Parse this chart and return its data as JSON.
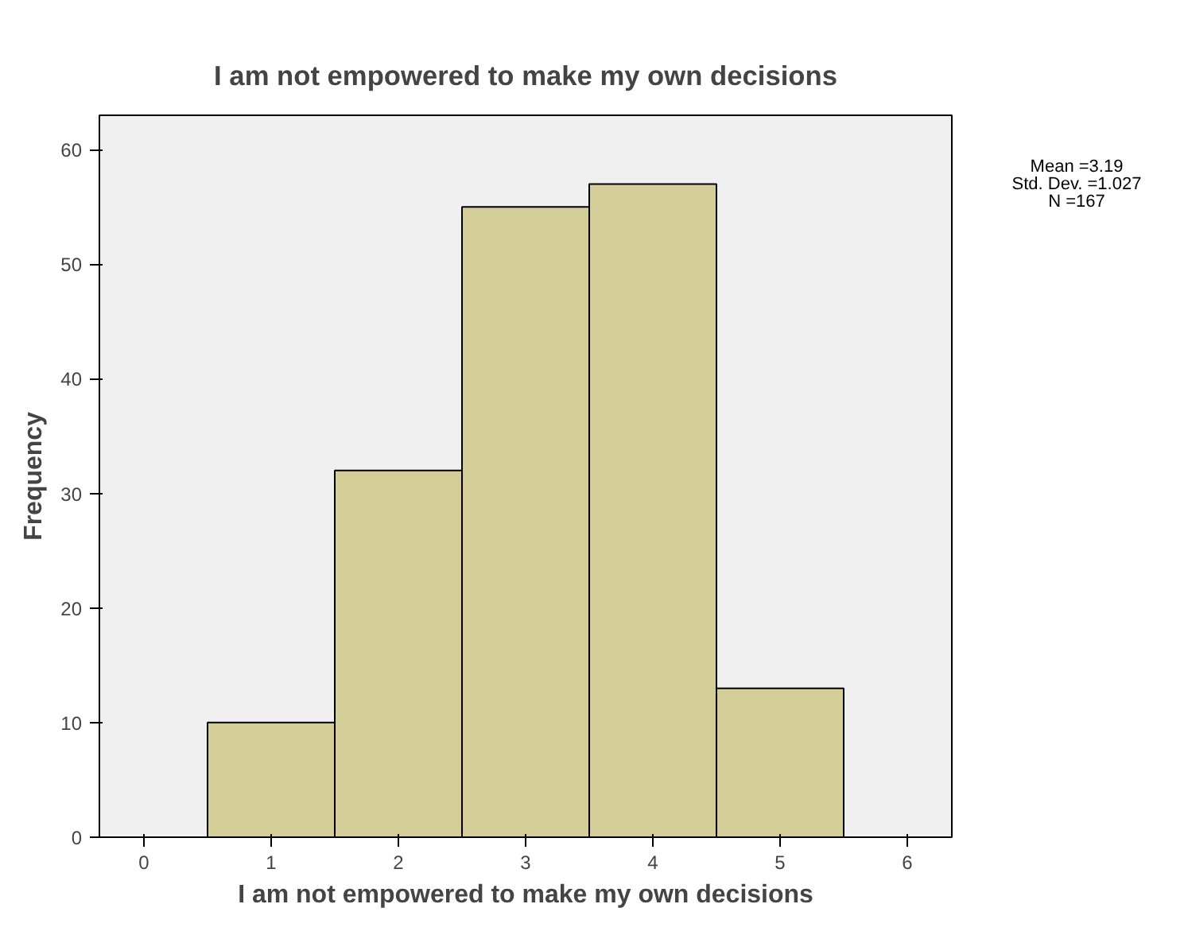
{
  "chart_data": {
    "type": "histogram",
    "title": "I am not empowered to make my own decisions",
    "xlabel": "I am not empowered to make my own decisions",
    "ylabel": "Frequency",
    "bins": [
      0.5,
      1.5,
      2.5,
      3.5,
      4.5,
      5.5
    ],
    "values": [
      10,
      32,
      55,
      57,
      13
    ],
    "color": "#d3ce97",
    "xlim": [
      -0.35,
      6.35
    ],
    "xticks": [
      0,
      1,
      2,
      3,
      4,
      5,
      6
    ],
    "ylim": [
      0,
      63
    ],
    "yticks": [
      0,
      10,
      20,
      30,
      40,
      50,
      60
    ],
    "grid": false,
    "annotations": [
      "Mean =3.19",
      "Std. Dev. =1.027",
      "N =167"
    ]
  }
}
